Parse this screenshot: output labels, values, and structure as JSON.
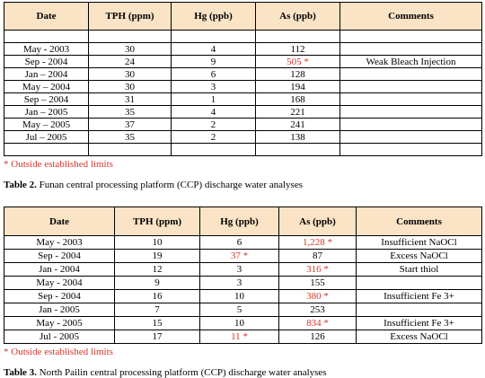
{
  "tables": [
    {
      "headers": [
        "Date",
        "TPH  (ppm)",
        "Hg  (ppb)",
        "As  (ppb)",
        "Comments"
      ],
      "rows": [
        [
          "May - 2003",
          "30",
          "4",
          "112",
          null
        ],
        [
          "Sep - 2004",
          "24",
          "9",
          "505 *",
          "Weak Bleach Injection"
        ],
        [
          "Jan – 2004",
          "30",
          "6",
          "128",
          null
        ],
        [
          "May – 2004",
          "30",
          "3",
          "194",
          null
        ],
        [
          "Sep – 2004",
          "31",
          "1",
          "168",
          null
        ],
        [
          "Jan – 2005",
          "35",
          "4",
          "221",
          null
        ],
        [
          "May – 2005",
          "37",
          "2",
          "241",
          null
        ],
        [
          "Jul – 2005",
          "35",
          "2",
          "138",
          null
        ]
      ],
      "note": "* Outside established limits",
      "caption": {
        "label": "Table 2.",
        "text": "Funan central processing platform (CCP) discharge water analyses"
      }
    },
    {
      "headers": [
        "Date",
        "TPH  (ppm)",
        "Hg  (ppb)",
        "As  (ppb)",
        "Comments"
      ],
      "rows": [
        [
          "May - 2003",
          "10",
          "6",
          "1,228 *",
          "Insufficient NaOCl"
        ],
        [
          "Sep - 2004",
          "19",
          "37 *",
          "87",
          "Excess NaOCl"
        ],
        [
          "Jan - 2004",
          "12",
          "3",
          "316 *",
          "Start thiol"
        ],
        [
          "May - 2004",
          "9",
          "3",
          "155",
          null
        ],
        [
          "Sep - 2004",
          "16",
          "10",
          "380 *",
          "Insufficient Fe 3+"
        ],
        [
          "Jan - 2005",
          "7",
          "5",
          "253",
          null
        ],
        [
          "May - 2005",
          "15",
          "10",
          "834 *",
          "Insufficient Fe 3+"
        ],
        [
          "Jul - 2005",
          "17",
          "11 *",
          "126",
          "Excess NaOCl"
        ]
      ],
      "note": "* Outside established limits",
      "caption": {
        "label": "Table 3.",
        "text": "North Pailin central processing platform (CCP) discharge water analyses"
      }
    }
  ]
}
